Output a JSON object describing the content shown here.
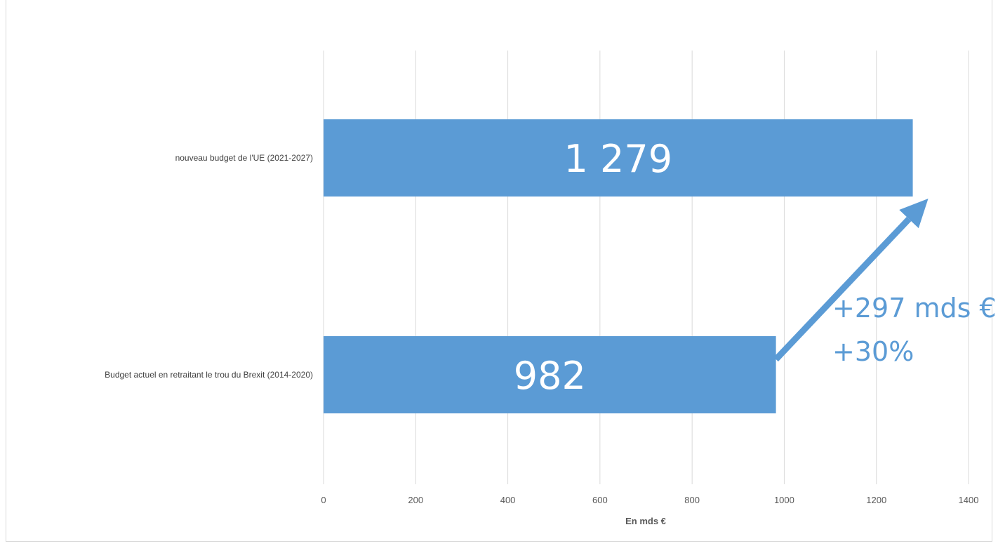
{
  "colors": {
    "bar": "#5b9bd5",
    "grid": "#d9d9d9",
    "annotation": "#5b9bd5"
  },
  "chart_data": {
    "type": "bar",
    "orientation": "horizontal",
    "categories": [
      "nouveau budget de l'UE (2021-2027)",
      "Budget actuel en retraitant le trou du Brexit (2014-2020)"
    ],
    "values": [
      1279,
      982
    ],
    "data_labels": [
      "1 279",
      "982"
    ],
    "xlabel": "En mds €",
    "xlim": [
      0,
      1400
    ],
    "xticks": [
      0,
      200,
      400,
      600,
      800,
      1000,
      1200,
      1400
    ],
    "grid": true,
    "annotation": {
      "lines": [
        "+297 mds €",
        "+30%"
      ],
      "arrow_from_value": 982,
      "arrow_to_value": 1279
    }
  }
}
